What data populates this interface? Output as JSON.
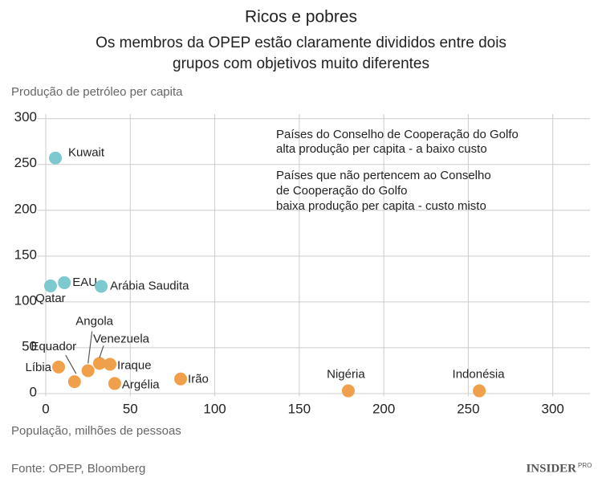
{
  "chart_data": {
    "type": "scatter",
    "title": "Ricos e pobres",
    "subtitle_lines": [
      "Os membros da OPEP estão claramente divididos entre dois",
      "grupos com objetivos muito diferentes"
    ],
    "y_label": "Produção de petróleo per capita",
    "x_label": "População, milhões de pessoas",
    "xlim": [
      -5,
      322
    ],
    "ylim": [
      -3,
      305
    ],
    "xticks": [
      0,
      50,
      100,
      150,
      200,
      250,
      300
    ],
    "yticks": [
      0,
      50,
      100,
      150,
      200,
      250,
      300
    ],
    "grid": true,
    "series": [
      {
        "label_lines": [
          "Países do Conselho de Cooperação do Golfo",
          "alta produção per capita - a baixo custo"
        ],
        "color": "#7ec8cf",
        "text_color": "#23908f",
        "labels": [
          "Kuwait",
          "Qatar",
          "EAU",
          "Arábia Saudita"
        ],
        "x": [
          5.7,
          2.8,
          11,
          32.8
        ],
        "values": [
          257,
          117.5,
          121,
          117
        ]
      },
      {
        "label_lines": [
          "Países que não pertencem ao Conselho",
          "de Cooperação do Golfo",
          "baixa produção per capita - custo misto"
        ],
        "color": "#f0a04b",
        "text_color": "#e8862a",
        "labels": [
          "Líbia",
          "Equador",
          "Angola",
          "Venezuela",
          "Iraque",
          "Argélia",
          "Irão",
          "Nigéria",
          "Indonésia"
        ],
        "x": [
          7.6,
          17,
          25,
          31.8,
          38,
          40.8,
          79.8,
          179,
          256.5
        ],
        "values": [
          29,
          13,
          25,
          33,
          32,
          11,
          16,
          3,
          3
        ]
      }
    ],
    "source": "Fonte: OPEP, Bloomberg",
    "brand": "INSIDER",
    "brand_sub": "PRO"
  }
}
